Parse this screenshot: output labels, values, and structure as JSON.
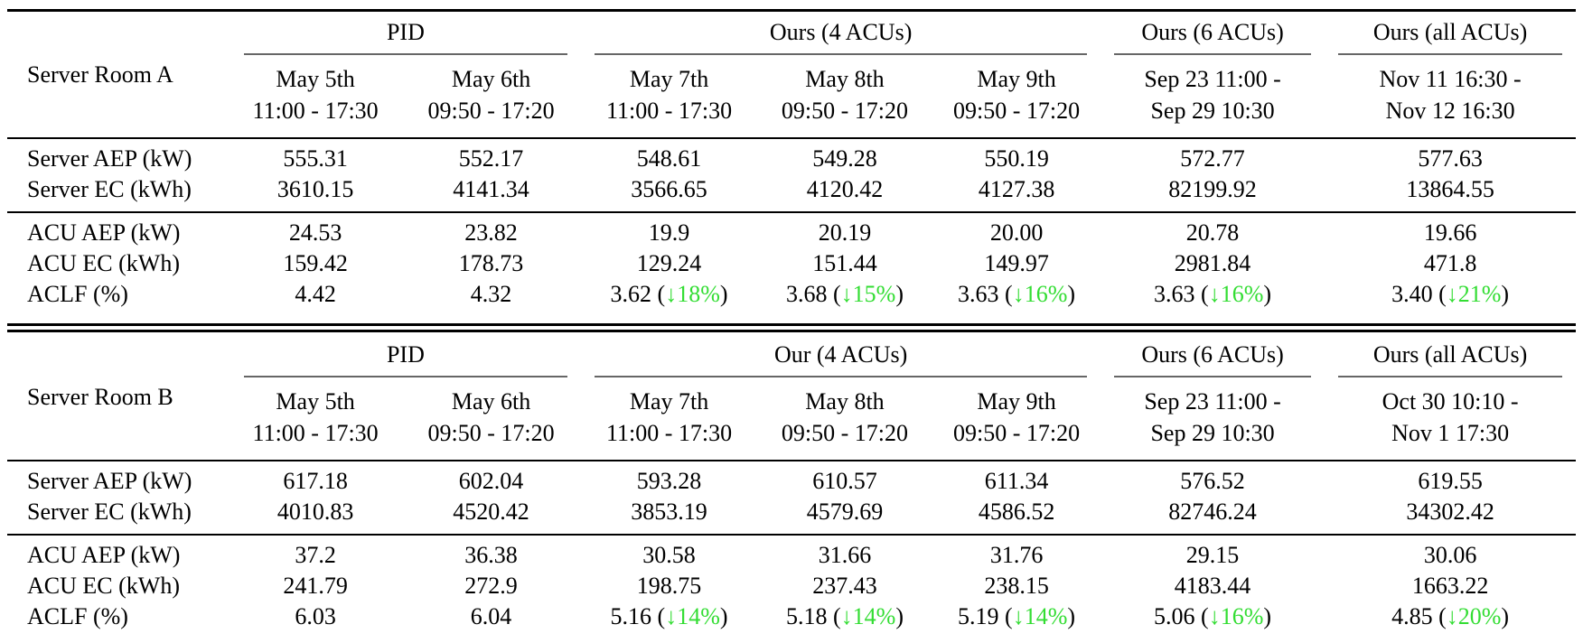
{
  "colors": {
    "text": "#000000",
    "rule": "#000000",
    "cmidrule": "#666666",
    "drop_green": "#33dd33"
  },
  "rooms": [
    {
      "label": "Server Room A",
      "groups": [
        {
          "label": "PID",
          "span": 2
        },
        {
          "label": "Ours (4 ACUs)",
          "span": 3
        },
        {
          "label": "Ours (6 ACUs)",
          "span": 1
        },
        {
          "label": "Ours (all ACUs)",
          "span": 1
        }
      ],
      "columns": [
        {
          "line1": "May 5th",
          "line2": "11:00 - 17:30"
        },
        {
          "line1": "May 6th",
          "line2": "09:50 - 17:20"
        },
        {
          "line1": "May 7th",
          "line2": "11:00 - 17:30"
        },
        {
          "line1": "May 8th",
          "line2": "09:50 - 17:20"
        },
        {
          "line1": "May 9th",
          "line2": "09:50 - 17:20"
        },
        {
          "line1": "Sep 23 11:00 -",
          "line2": "Sep 29 10:30"
        },
        {
          "line1": "Nov 11 16:30 -",
          "line2": "Nov 12 16:30"
        }
      ],
      "row_groups": [
        {
          "rows": [
            {
              "label": "Server AEP (kW)",
              "values": [
                "555.31",
                "552.17",
                "548.61",
                "549.28",
                "550.19",
                "572.77",
                "577.63"
              ]
            },
            {
              "label": "Server EC (kWh)",
              "values": [
                "3610.15",
                "4141.34",
                "3566.65",
                "4120.42",
                "4127.38",
                "82199.92",
                "13864.55"
              ]
            }
          ]
        },
        {
          "rows": [
            {
              "label": "ACU AEP (kW)",
              "values": [
                "24.53",
                "23.82",
                "19.9",
                "20.19",
                "20.00",
                "20.78",
                "19.66"
              ]
            },
            {
              "label": "ACU EC (kWh)",
              "values": [
                "159.42",
                "178.73",
                "129.24",
                "151.44",
                "149.97",
                "2981.84",
                "471.8"
              ]
            },
            {
              "label": "ACLF (%)",
              "values": [
                "4.42",
                "4.32",
                [
                  {
                    "text": "3.62 ("
                  },
                  {
                    "text": "↓18%",
                    "green": true
                  },
                  {
                    "text": ")"
                  }
                ],
                [
                  {
                    "text": "3.68 ("
                  },
                  {
                    "text": "↓15%",
                    "green": true
                  },
                  {
                    "text": ")"
                  }
                ],
                [
                  {
                    "text": "3.63 ("
                  },
                  {
                    "text": "↓16%",
                    "green": true
                  },
                  {
                    "text": ")"
                  }
                ],
                [
                  {
                    "text": "3.63 ("
                  },
                  {
                    "text": "↓16%",
                    "green": true
                  },
                  {
                    "text": ")"
                  }
                ],
                [
                  {
                    "text": "3.40 ("
                  },
                  {
                    "text": "↓21%",
                    "green": true
                  },
                  {
                    "text": ")"
                  }
                ]
              ]
            }
          ]
        }
      ]
    },
    {
      "label": "Server Room B",
      "groups": [
        {
          "label": "PID",
          "span": 2
        },
        {
          "label": "Our (4 ACUs)",
          "span": 3
        },
        {
          "label": "Ours (6 ACUs)",
          "span": 1
        },
        {
          "label": "Ours (all ACUs)",
          "span": 1
        }
      ],
      "columns": [
        {
          "line1": "May 5th",
          "line2": "11:00 - 17:30"
        },
        {
          "line1": "May 6th",
          "line2": "09:50 - 17:20"
        },
        {
          "line1": "May 7th",
          "line2": "11:00 - 17:30"
        },
        {
          "line1": "May 8th",
          "line2": "09:50 - 17:20"
        },
        {
          "line1": "May 9th",
          "line2": "09:50 - 17:20"
        },
        {
          "line1": "Sep 23 11:00 -",
          "line2": "Sep 29 10:30"
        },
        {
          "line1": "Oct 30 10:10 -",
          "line2": "Nov 1 17:30"
        }
      ],
      "row_groups": [
        {
          "rows": [
            {
              "label": "Server AEP (kW)",
              "values": [
                "617.18",
                "602.04",
                "593.28",
                "610.57",
                "611.34",
                "576.52",
                "619.55"
              ]
            },
            {
              "label": "Server EC (kWh)",
              "values": [
                "4010.83",
                "4520.42",
                "3853.19",
                "4579.69",
                "4586.52",
                "82746.24",
                "34302.42"
              ]
            }
          ]
        },
        {
          "rows": [
            {
              "label": "ACU AEP (kW)",
              "values": [
                "37.2",
                "36.38",
                "30.58",
                "31.66",
                "31.76",
                "29.15",
                "30.06"
              ]
            },
            {
              "label": "ACU EC (kWh)",
              "values": [
                "241.79",
                "272.9",
                "198.75",
                "237.43",
                "238.15",
                "4183.44",
                "1663.22"
              ]
            },
            {
              "label": "ACLF (%)",
              "values": [
                "6.03",
                "6.04",
                [
                  {
                    "text": "5.16 ("
                  },
                  {
                    "text": "↓14%",
                    "green": true
                  },
                  {
                    "text": ")"
                  }
                ],
                [
                  {
                    "text": "5.18 ("
                  },
                  {
                    "text": "↓14%",
                    "green": true
                  },
                  {
                    "text": ")"
                  }
                ],
                [
                  {
                    "text": "5.19 ("
                  },
                  {
                    "text": "↓14%",
                    "green": true
                  },
                  {
                    "text": ")"
                  }
                ],
                [
                  {
                    "text": "5.06 ("
                  },
                  {
                    "text": "↓16%",
                    "green": true
                  },
                  {
                    "text": ")"
                  }
                ],
                [
                  {
                    "text": "4.85 ("
                  },
                  {
                    "text": "↓20%",
                    "green": true
                  },
                  {
                    "text": ")"
                  }
                ]
              ]
            }
          ]
        }
      ]
    }
  ]
}
